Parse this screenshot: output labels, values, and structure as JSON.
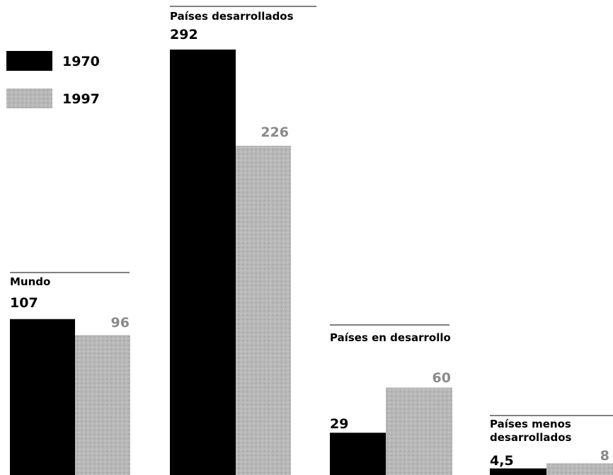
{
  "chart_data": {
    "type": "bar",
    "series": [
      {
        "name": "1970",
        "color": "#000000"
      },
      {
        "name": "1997",
        "color": "#b4b4b4"
      }
    ],
    "groups": [
      {
        "title_lines": [
          "Mundo"
        ],
        "values": [
          107,
          96
        ],
        "labels": [
          "107",
          "96"
        ]
      },
      {
        "title_lines": [
          "Países desarrollados"
        ],
        "values": [
          292,
          226
        ],
        "labels": [
          "292",
          "226"
        ]
      },
      {
        "title_lines": [
          "Países en desarrollo"
        ],
        "values": [
          29,
          60
        ],
        "labels": [
          "29",
          "60"
        ]
      },
      {
        "title_lines": [
          "Países menos",
          "desarrollados"
        ],
        "values": [
          4.5,
          8
        ],
        "labels": [
          "4,5",
          "8"
        ]
      }
    ],
    "legend": [
      {
        "label": "1970",
        "pattern": "black"
      },
      {
        "label": "1997",
        "pattern": "dotted-grey"
      }
    ],
    "legend_position": "top-left",
    "grid": false
  },
  "colors": {
    "series_1970": "#000000",
    "series_1997": "#b4b4b4",
    "value_1997_text": "#8a8a8a",
    "rule": "#000000"
  }
}
